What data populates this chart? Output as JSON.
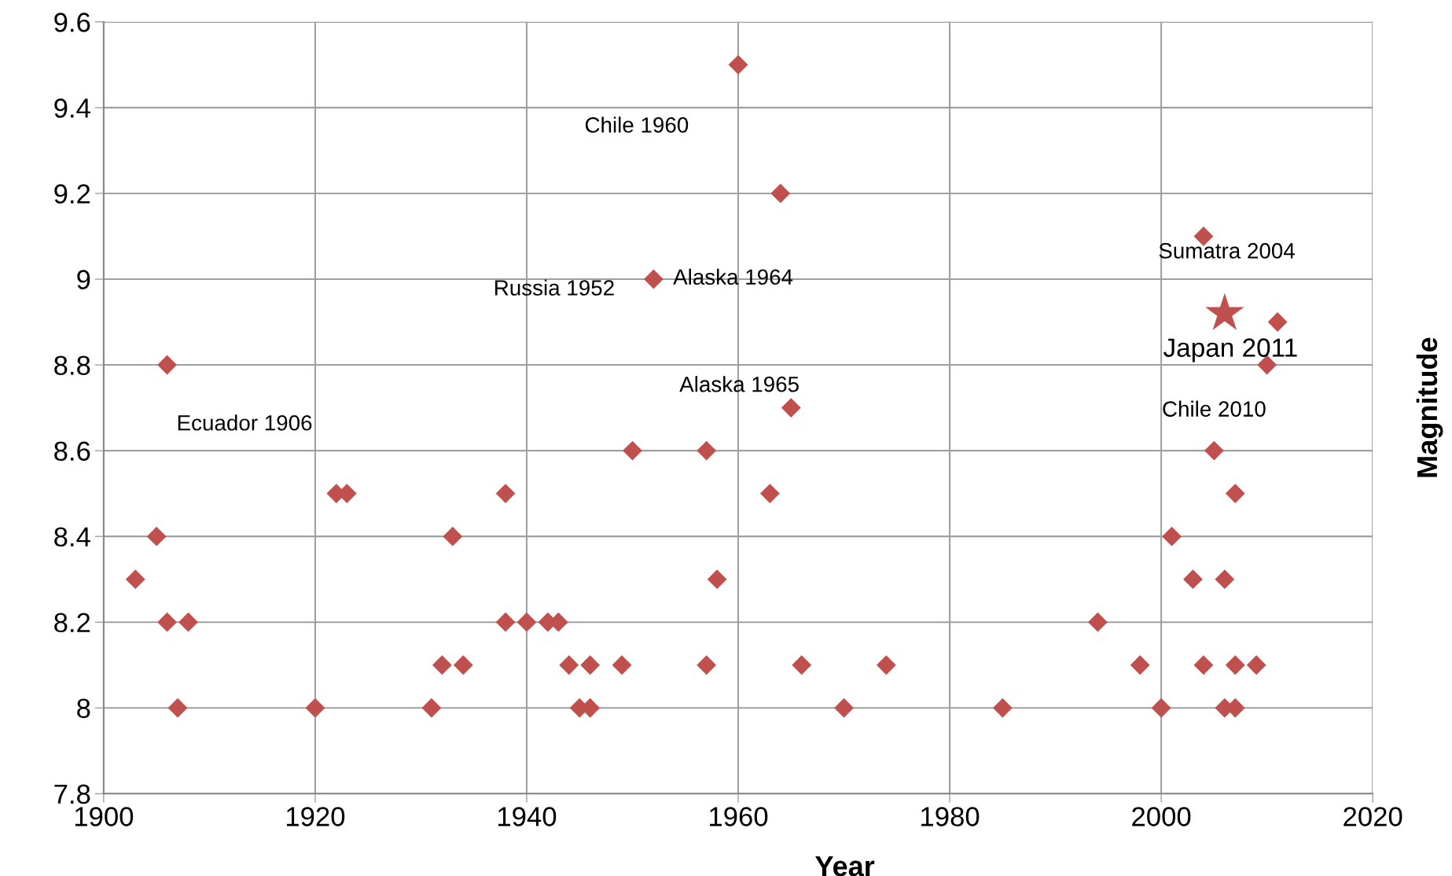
{
  "chart_data": {
    "type": "scatter",
    "xlabel": "Year",
    "ylabel": "Magnitude",
    "xlim": [
      1900,
      2020
    ],
    "xticks": [
      1900,
      1920,
      1940,
      1960,
      1980,
      2000,
      2020
    ],
    "ylim": [
      7.8,
      9.6
    ],
    "yticks": [
      7.8,
      8,
      8.2,
      8.4,
      8.6,
      8.8,
      9,
      9.2,
      9.4,
      9.6
    ],
    "grid": true,
    "legend": false,
    "series": [
      {
        "color": "#c0504d",
        "marker": "diamond",
        "x": [
          1903,
          1905,
          1906,
          1906,
          1908,
          1907,
          1920,
          1922,
          1923,
          1931,
          1932,
          1933,
          1934,
          1938,
          1938,
          1940,
          1942,
          1943,
          1944,
          1945,
          1946,
          1946,
          1949,
          1950,
          1952,
          1957,
          1957,
          1958,
          1960,
          1963,
          1964,
          1965,
          1966,
          1970,
          1974,
          1985,
          1994,
          1998,
          2000,
          2001,
          2003,
          2004,
          2004,
          2005,
          2006,
          2006,
          2007,
          2007,
          2007,
          2009,
          2010,
          2011
        ],
        "values": [
          8.3,
          8.4,
          8.8,
          8.2,
          8.2,
          8.0,
          8.0,
          8.5,
          8.5,
          8.0,
          8.1,
          8.4,
          8.1,
          8.5,
          8.2,
          8.2,
          8.2,
          8.2,
          8.1,
          8.0,
          8.0,
          8.1,
          8.1,
          8.6,
          9.0,
          8.6,
          8.1,
          8.3,
          9.5,
          8.5,
          9.2,
          8.7,
          8.1,
          8.0,
          8.1,
          8.0,
          8.2,
          8.1,
          8.0,
          8.4,
          8.3,
          9.1,
          8.1,
          8.6,
          8.3,
          8.0,
          8.5,
          8.1,
          8.0,
          8.1,
          8.8,
          8.9
        ]
      },
      {
        "color": "#c0504d",
        "marker": "star",
        "x": [
          2006
        ],
        "values": [
          8.92
        ]
      }
    ],
    "annotations": [
      "Chile 1960",
      "Russia 1952",
      "Alaska 1964",
      "Alaska 1965",
      "Ecuador 1906",
      "Sumatra 2004",
      "Japan 2011",
      "Chile 2010"
    ]
  }
}
